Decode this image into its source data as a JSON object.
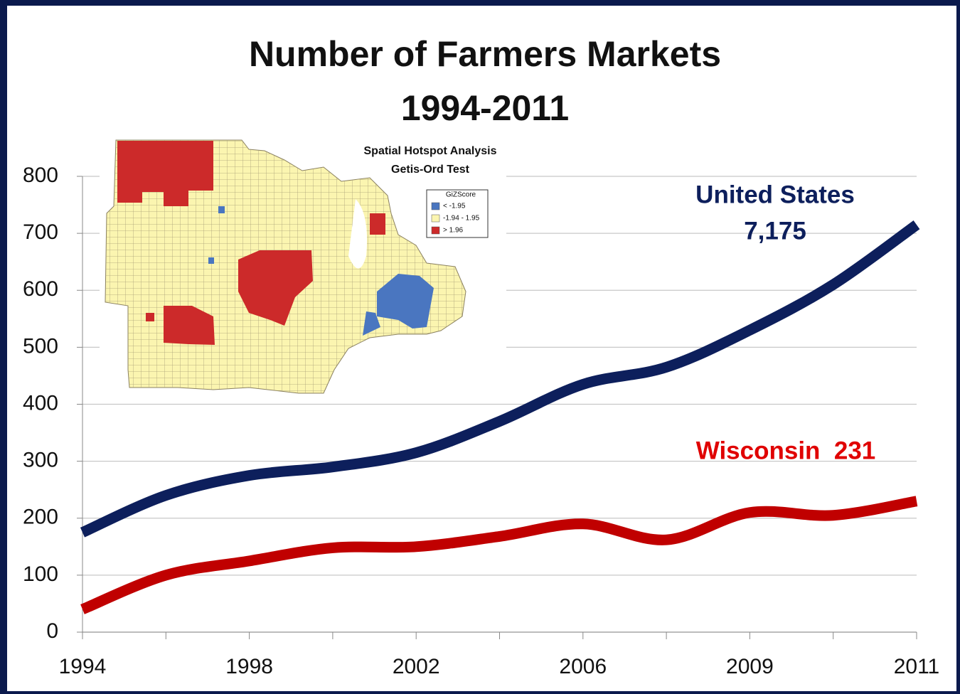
{
  "chart_data": {
    "type": "line",
    "title": "Number of Farmers Markets",
    "subtitle": "1994-2011",
    "categories": [
      "1994",
      null,
      "1998",
      null,
      "2002",
      null,
      "2006",
      null,
      "2009",
      null,
      "2011"
    ],
    "series": [
      {
        "name": "United States",
        "color": "#0d1f5c",
        "values": [
          175,
          240,
          275,
          290,
          315,
          370,
          435,
          465,
          530,
          610,
          715
        ]
      },
      {
        "name": "Wisconsin",
        "color": "#c00000",
        "values": [
          40,
          100,
          125,
          148,
          150,
          168,
          190,
          162,
          210,
          205,
          230
        ]
      }
    ],
    "annotations": [
      {
        "text": "United States",
        "color": "#0d1f5c"
      },
      {
        "text": "7,175",
        "color": "#0d1f5c"
      },
      {
        "text": "Wisconsin  231",
        "color": "#e00000"
      }
    ],
    "ylim": [
      0,
      800
    ],
    "yticks": [
      0,
      100,
      200,
      300,
      400,
      500,
      600,
      700,
      800
    ],
    "grid": true,
    "inset": {
      "title": "Spatial Hotspot Analysis",
      "subtitle": "Getis-Ord Test",
      "legend_title": "GiZScore",
      "legend": [
        {
          "label": "< -1.95",
          "color": "#4a76c0"
        },
        {
          "label": "-1.94 - 1.95",
          "color": "#fbf5b0"
        },
        {
          "label": "> 1.96",
          "color": "#cc2a2a"
        }
      ]
    }
  }
}
